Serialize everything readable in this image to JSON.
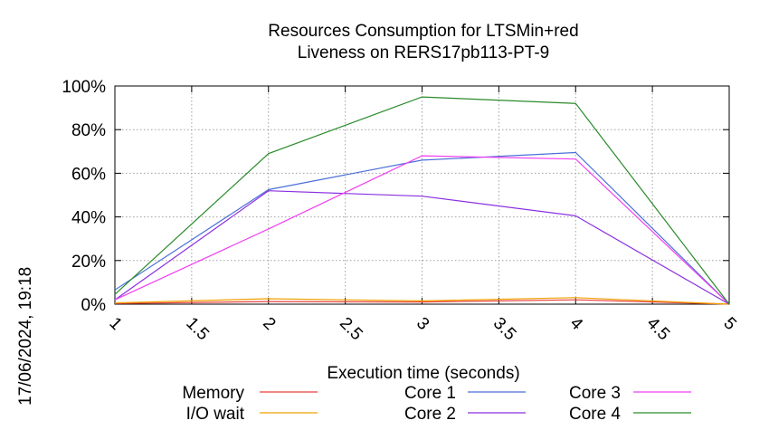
{
  "side_timestamp": "17/06/2024, 19:18",
  "chart_data": {
    "type": "line",
    "title": [
      "Resources Consumption for LTSMin+red",
      "Liveness on RERS17pb113-PT-9"
    ],
    "xlabel": "Execution time (seconds)",
    "ylabel": "",
    "xlim": [
      1,
      5
    ],
    "ylim": [
      0,
      100
    ],
    "x_ticks": [
      "1",
      "1.5",
      "2",
      "2.5",
      "3",
      "3.5",
      "4",
      "4.5",
      "5"
    ],
    "y_ticks": [
      "0%",
      "20%",
      "40%",
      "60%",
      "80%",
      "100%"
    ],
    "grid": true,
    "legend_position": "bottom",
    "x": [
      1,
      2,
      3,
      4,
      5
    ],
    "series": [
      {
        "name": "Memory",
        "color": "#e8413a",
        "values": [
          0.3,
          1.2,
          1.0,
          2.0,
          0
        ]
      },
      {
        "name": "I/O wait",
        "color": "#f0a000",
        "values": [
          0.6,
          2.5,
          1.5,
          3.0,
          0
        ]
      },
      {
        "name": "Core 1",
        "color": "#4a6fd8",
        "values": [
          6.5,
          52.5,
          66.0,
          69.5,
          0
        ]
      },
      {
        "name": "Core 2",
        "color": "#8a30e0",
        "values": [
          2.0,
          52.0,
          49.5,
          40.5,
          0
        ]
      },
      {
        "name": "Core 3",
        "color": "#f040f0",
        "values": [
          2.0,
          34.5,
          68.0,
          66.5,
          0
        ]
      },
      {
        "name": "Core 4",
        "color": "#2a8a2a",
        "values": [
          4.5,
          69.0,
          95.0,
          92.0,
          0
        ]
      }
    ]
  }
}
